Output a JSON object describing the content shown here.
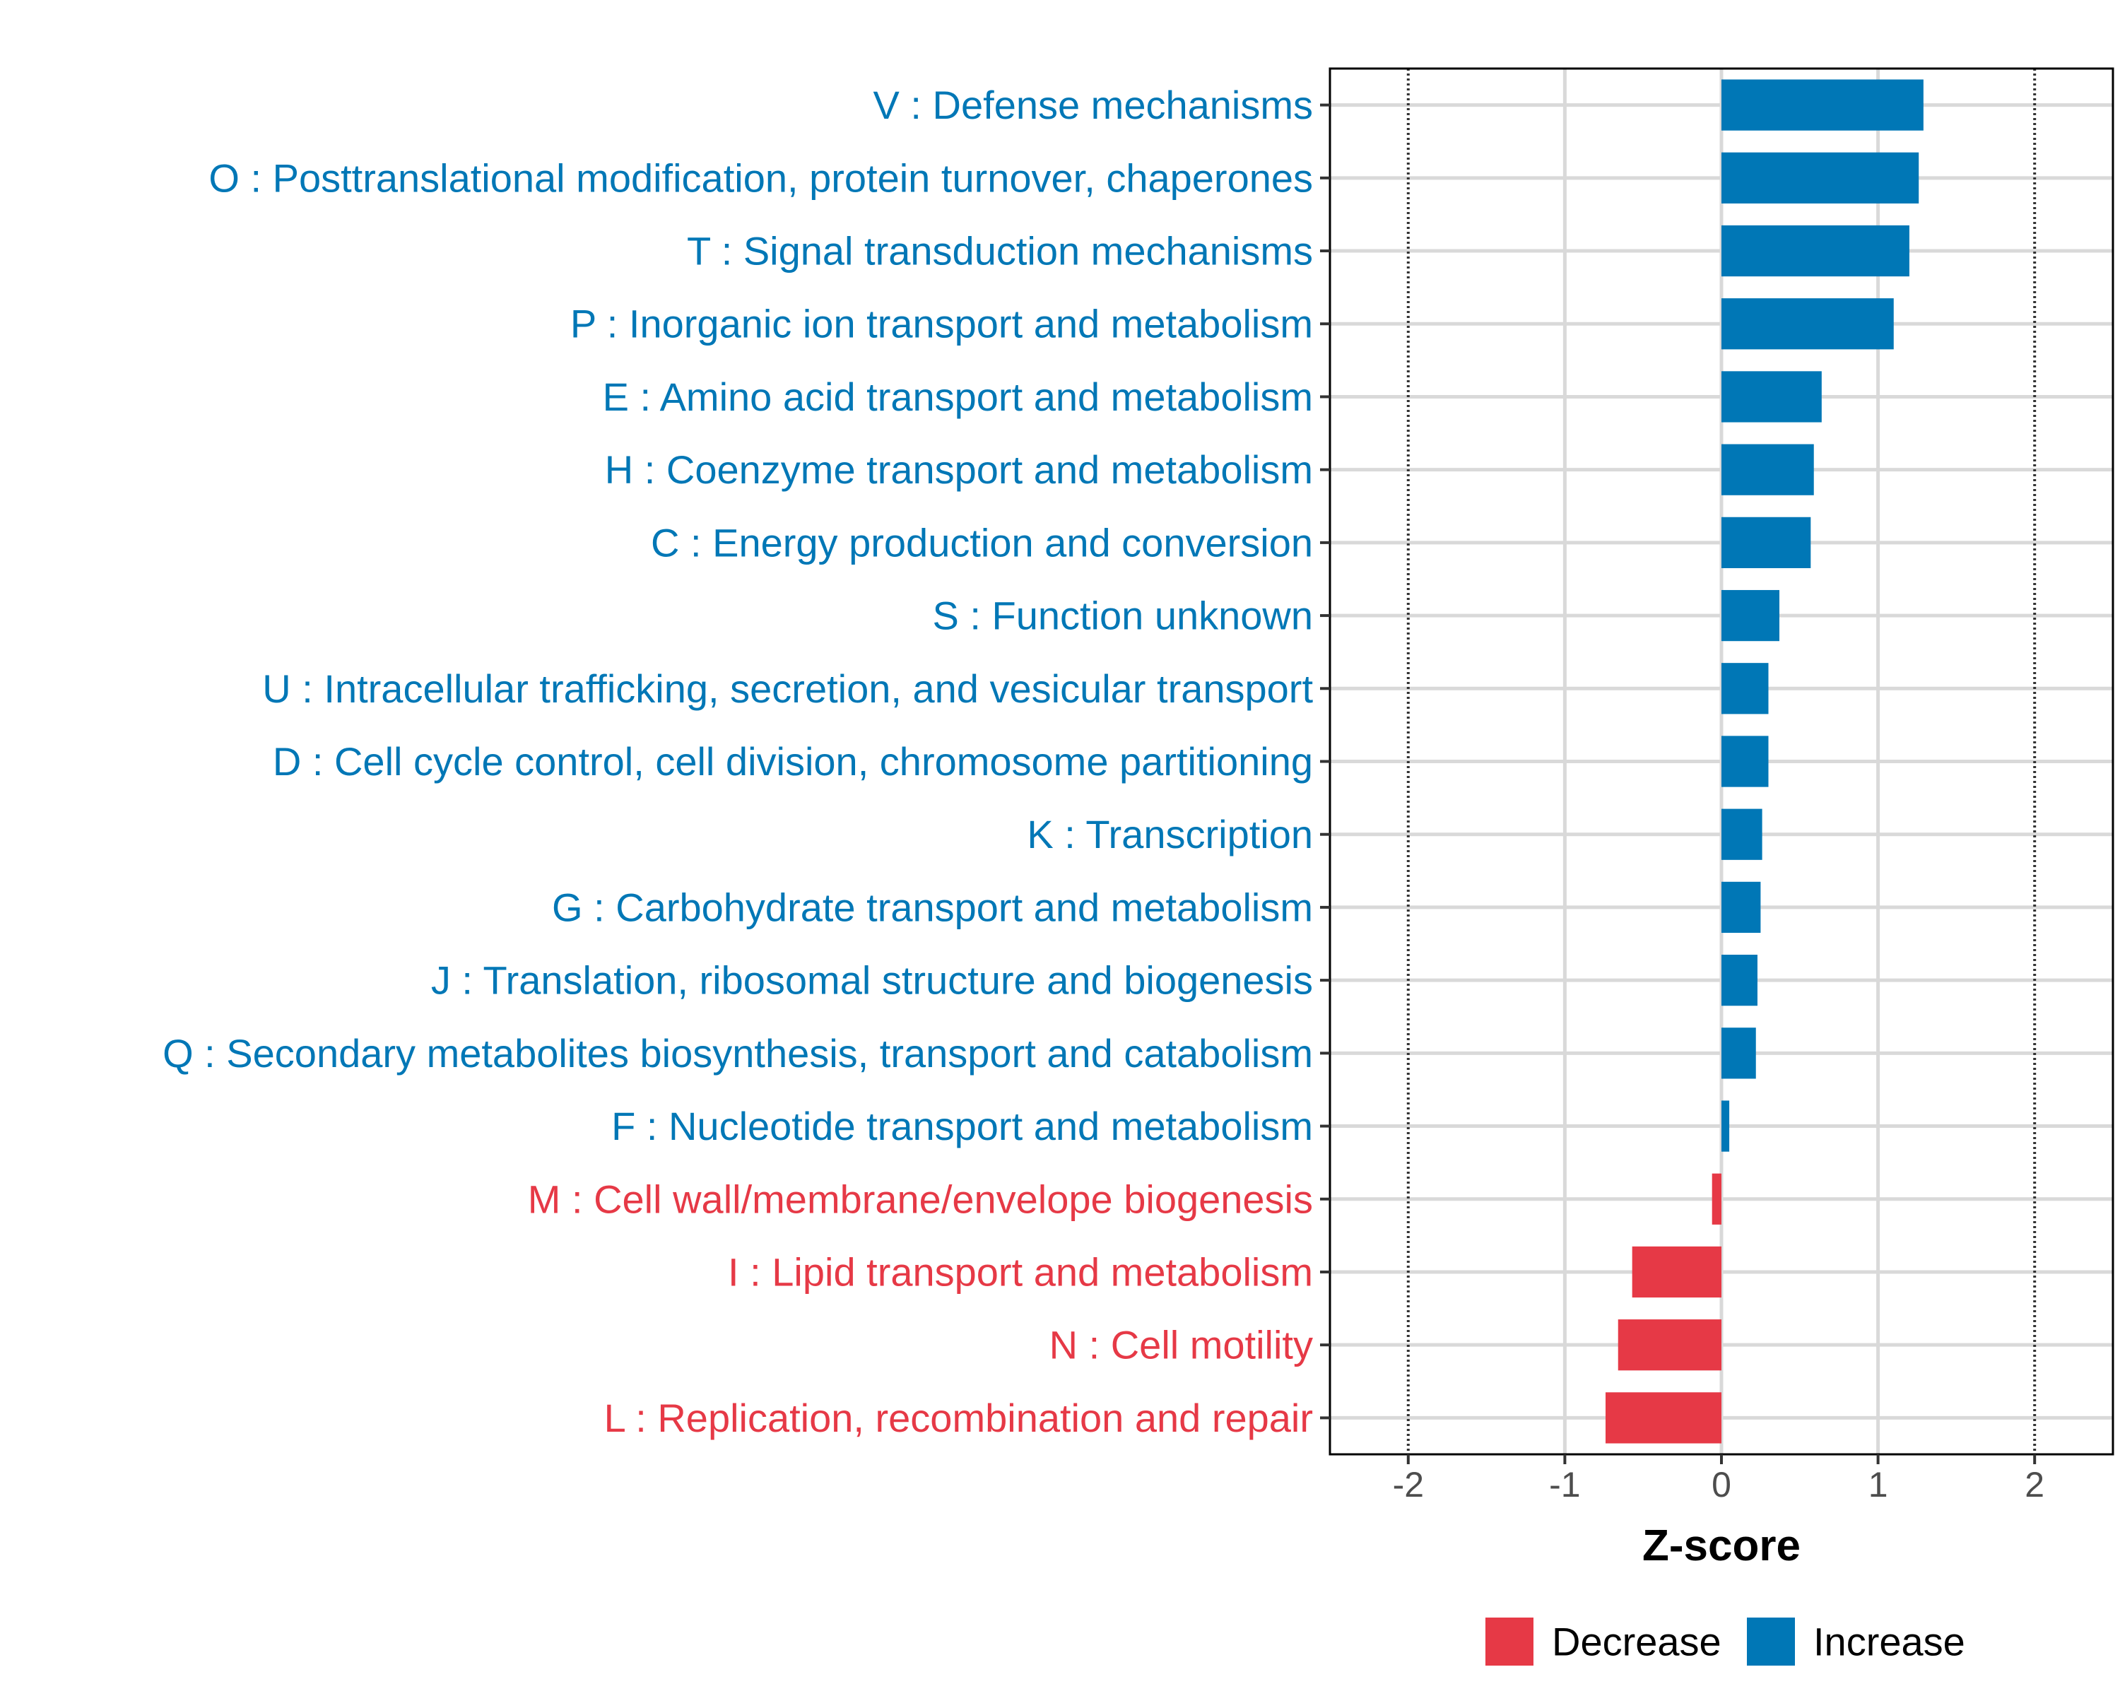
{
  "chart_data": {
    "type": "bar",
    "orientation": "horizontal",
    "categories": [
      "V : Defense mechanisms",
      "O : Posttranslational modification, protein turnover, chaperones",
      "T : Signal transduction mechanisms",
      "P : Inorganic ion transport and metabolism",
      "E : Amino acid transport and metabolism",
      "H : Coenzyme transport and metabolism",
      "C : Energy production and conversion",
      "S : Function unknown",
      "U : Intracellular trafficking, secretion, and vesicular transport",
      "D : Cell cycle control, cell division, chromosome partitioning",
      "K : Transcription",
      "G : Carbohydrate transport and metabolism",
      "J : Translation, ribosomal structure and biogenesis",
      "Q : Secondary metabolites biosynthesis, transport and catabolism",
      "F : Nucleotide transport and metabolism",
      "M : Cell wall/membrane/envelope biogenesis",
      "I : Lipid transport and metabolism",
      "N : Cell motility",
      "L : Replication, recombination and repair"
    ],
    "values": [
      1.29,
      1.26,
      1.2,
      1.1,
      0.64,
      0.59,
      0.57,
      0.37,
      0.3,
      0.3,
      0.26,
      0.25,
      0.23,
      0.22,
      0.05,
      -0.06,
      -0.57,
      -0.66,
      -0.74
    ],
    "groups": [
      "Increase",
      "Increase",
      "Increase",
      "Increase",
      "Increase",
      "Increase",
      "Increase",
      "Increase",
      "Increase",
      "Increase",
      "Increase",
      "Increase",
      "Increase",
      "Increase",
      "Increase",
      "Decrease",
      "Decrease",
      "Decrease",
      "Decrease"
    ],
    "xlabel": "Z-score",
    "ylabel": "",
    "xlim": [
      -2.5,
      2.5
    ],
    "xticks": [
      -2,
      -1,
      0,
      1,
      2
    ],
    "tick_labels": [
      "-2",
      "-1",
      "0",
      "1",
      "2"
    ],
    "threshold_lines": [
      -2,
      2
    ],
    "legend": {
      "position": "bottom",
      "entries": [
        {
          "name": "Decrease",
          "color": "#E63946"
        },
        {
          "name": "Increase",
          "color": "#0077B6"
        }
      ]
    },
    "colors": {
      "Decrease": "#E63946",
      "Increase": "#0077B6"
    }
  }
}
